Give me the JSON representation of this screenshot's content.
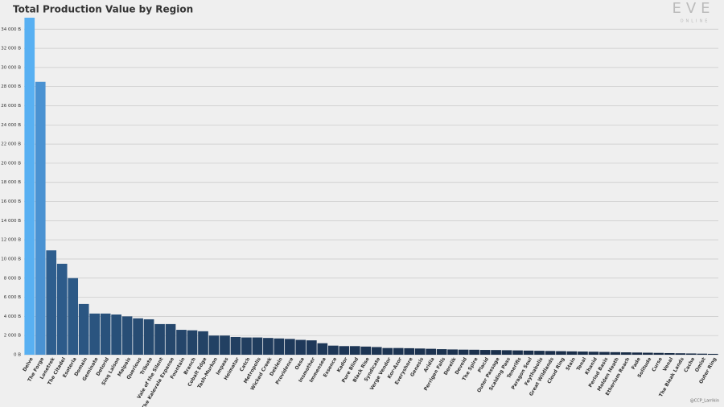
{
  "chart_data": {
    "type": "bar",
    "title": "Total Production Value by Region",
    "logo": "EVE",
    "logo_sub": "ONLINE",
    "credit": "@CCP_Larrikin",
    "categories": [
      "Delve",
      "The Forge",
      "Lonetrek",
      "The Citadel",
      "Esoteria",
      "Domain",
      "Geminate",
      "Detorid",
      "Sinq Laison",
      "Malpais",
      "Querious",
      "Tribute",
      "Vale of the Silent",
      "The Kalevala Expanse",
      "Fountain",
      "Branch",
      "Cobalt Edge",
      "Tash-Murkon",
      "Impass",
      "Heimatar",
      "Catch",
      "Metropolis",
      "Wicked Creek",
      "Deklein",
      "Providence",
      "Oasa",
      "Insmother",
      "Immensea",
      "Essence",
      "Kador",
      "Pure Blind",
      "Black Rise",
      "Syndicate",
      "Verge Vendor",
      "Kor-Azor",
      "Everyshore",
      "Genesis",
      "Aridia",
      "Perrigen Falls",
      "Derelik",
      "Devoid",
      "The Spire",
      "Placid",
      "Outer Passage",
      "Scalding Pass",
      "Tenerifis",
      "Paragon Soul",
      "Feythabolis",
      "Great Wildlands",
      "Cloud Ring",
      "Stain",
      "Tenal",
      "Khanid",
      "Period Basis",
      "Molden Heath",
      "Etherium Reach",
      "Fade",
      "Solitude",
      "Curse",
      "Venal",
      "The Bleak Lands",
      "Cache",
      "Omist",
      "Outer Ring"
    ],
    "values": [
      35200,
      28500,
      10900,
      9500,
      8000,
      5300,
      4300,
      4300,
      4200,
      4000,
      3800,
      3700,
      3200,
      3200,
      2600,
      2550,
      2450,
      2000,
      2000,
      1850,
      1800,
      1800,
      1750,
      1700,
      1650,
      1550,
      1500,
      1200,
      950,
      900,
      900,
      850,
      800,
      700,
      700,
      680,
      650,
      620,
      580,
      550,
      530,
      520,
      500,
      490,
      470,
      450,
      430,
      410,
      390,
      370,
      350,
      330,
      310,
      290,
      270,
      250,
      230,
      210,
      190,
      170,
      150,
      130,
      110,
      90
    ],
    "colors": [
      "#58b0f2",
      "#4a92d2",
      "#2e5e8e",
      "#2d5b8a",
      "#2c5986",
      "#2b5682",
      "#2a547f",
      "#29527c",
      "#285079",
      "#284e76",
      "#274c73",
      "#264a70",
      "#25486e",
      "#25476c",
      "#24456a",
      "#234468",
      "#234366",
      "#224164",
      "#224062",
      "#213f61",
      "#213e60",
      "#203d5e",
      "#203c5d",
      "#1f3b5c",
      "#1f3a5b",
      "#1f395a",
      "#1e3859",
      "#1e3858",
      "#1e3757",
      "#1d3656",
      "#1d3655",
      "#1d3554",
      "#1d3553",
      "#1c3452",
      "#1c3452",
      "#1c3351",
      "#1c3350",
      "#1c3250",
      "#1b324f",
      "#1b314e",
      "#1b314e",
      "#1b314d",
      "#1b304d",
      "#1b304c",
      "#1a304c",
      "#1a2f4b",
      "#1a2f4b",
      "#1a2f4a",
      "#1a2e4a",
      "#1a2e49",
      "#1a2e49",
      "#192e49",
      "#192d48",
      "#192d48",
      "#192d47",
      "#192d47",
      "#192c47",
      "#192c46",
      "#192c46",
      "#192c46",
      "#182b45",
      "#182b45",
      "#182b45",
      "#182b44"
    ],
    "ylim": [
      0,
      35200
    ],
    "yticks": [
      {
        "value": 0,
        "label": "0 B"
      },
      {
        "value": 2000,
        "label": "2 000 B"
      },
      {
        "value": 4000,
        "label": "4 000 B"
      },
      {
        "value": 6000,
        "label": "6 000 B"
      },
      {
        "value": 8000,
        "label": "8 000 B"
      },
      {
        "value": 10000,
        "label": "10 000 B"
      },
      {
        "value": 12000,
        "label": "12 000 B"
      },
      {
        "value": 14000,
        "label": "14 000 B"
      },
      {
        "value": 16000,
        "label": "16 000 B"
      },
      {
        "value": 18000,
        "label": "18 000 B"
      },
      {
        "value": 20000,
        "label": "20 000 B"
      },
      {
        "value": 22000,
        "label": "22 000 B"
      },
      {
        "value": 24000,
        "label": "24 000 B"
      },
      {
        "value": 26000,
        "label": "26 000 B"
      },
      {
        "value": 28000,
        "label": "28 000 B"
      },
      {
        "value": 30000,
        "label": "30 000 B"
      },
      {
        "value": 32000,
        "label": "32 000 B"
      },
      {
        "value": 34000,
        "label": "34 000 B"
      }
    ],
    "grid": true
  }
}
